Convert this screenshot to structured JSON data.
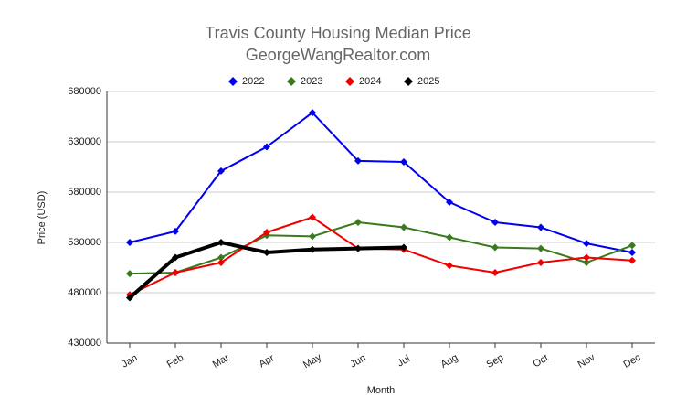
{
  "chart_data": {
    "type": "line",
    "title": "Travis County Housing Median Price",
    "subtitle": "GeorgeWangRealtor.com",
    "x_label": "Month",
    "y_label": "Price (USD)",
    "categories": [
      "Jan",
      "Feb",
      "Mar",
      "Apr",
      "May",
      "Jun",
      "Jul",
      "Aug",
      "Sep",
      "Oct",
      "Nov",
      "Dec"
    ],
    "series": [
      {
        "name": "2022",
        "color": "#0000ee",
        "width": 2,
        "values": [
          530000,
          541000,
          601000,
          625000,
          659000,
          611000,
          610000,
          570000,
          550000,
          545000,
          529000,
          520000
        ]
      },
      {
        "name": "2023",
        "color": "#3a7a1e",
        "width": 2,
        "values": [
          499000,
          500000,
          515000,
          537000,
          536000,
          550000,
          545000,
          535000,
          525000,
          524000,
          510000,
          527000
        ]
      },
      {
        "name": "2024",
        "color": "#ee0000",
        "width": 2,
        "values": [
          478000,
          500000,
          510000,
          540000,
          555000,
          524000,
          523000,
          507000,
          500000,
          510000,
          515000,
          512000
        ]
      },
      {
        "name": "2025",
        "color": "#000000",
        "width": 4,
        "values": [
          475000,
          515000,
          530000,
          520000,
          523000,
          524000,
          525000,
          null,
          null,
          null,
          null,
          null
        ]
      }
    ],
    "ylim": [
      430000,
      680000
    ],
    "yticks": [
      430000,
      480000,
      530000,
      580000,
      630000,
      680000
    ],
    "grid": true,
    "legend": "top"
  }
}
